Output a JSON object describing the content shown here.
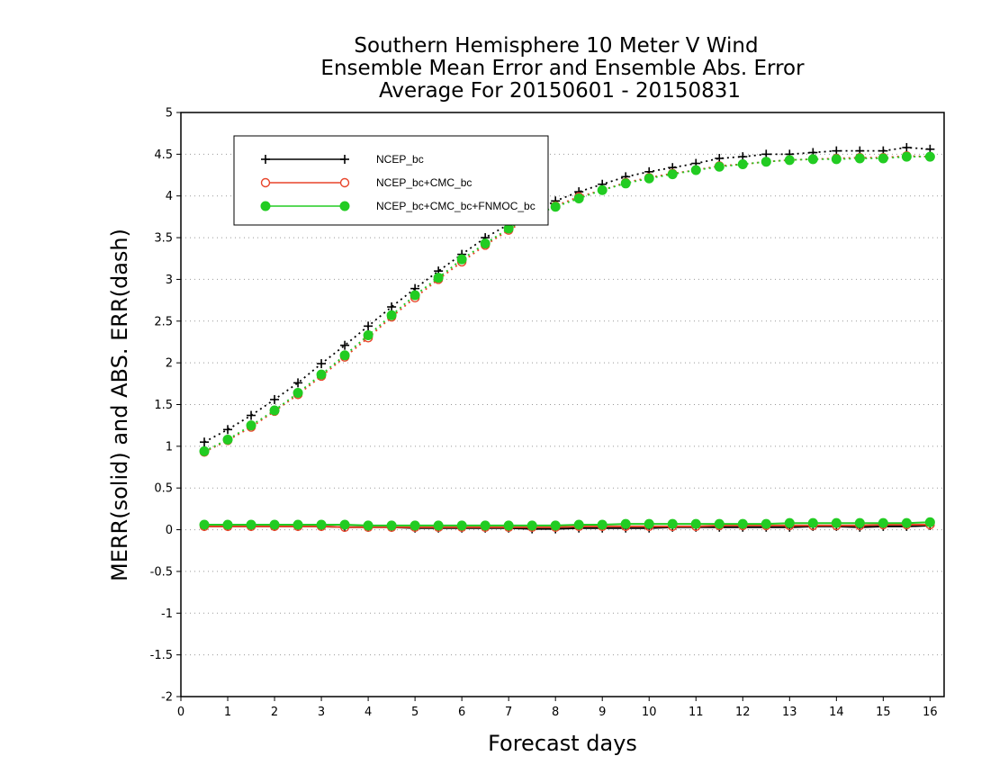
{
  "chart_data": {
    "type": "line",
    "title_lines": [
      "Southern Hemisphere 10 Meter V Wind",
      "Ensemble Mean Error and Ensemble Abs. Error",
      "Average For 20150601 - 20150831"
    ],
    "xlabel": "Forecast days",
    "ylabel": "MERR(solid) and ABS. ERR(dash)",
    "xlim": [
      0,
      16.3
    ],
    "ylim": [
      -2,
      5
    ],
    "x_ticks": [
      "0",
      "1",
      "2",
      "3",
      "4",
      "5",
      "6",
      "7",
      "8",
      "9",
      "10",
      "11",
      "12",
      "13",
      "14",
      "15",
      "16"
    ],
    "y_ticks": [
      "-2",
      "-1.5",
      "-1",
      "-0.5",
      "0",
      "0.5",
      "1",
      "1.5",
      "2",
      "2.5",
      "3",
      "3.5",
      "4",
      "4.5",
      "5"
    ],
    "grid": "horizontal dotted",
    "legend_position": "top-left",
    "x": [
      0.5,
      1.0,
      1.5,
      2.0,
      2.5,
      3.0,
      3.5,
      4.0,
      4.5,
      5.0,
      5.5,
      6.0,
      6.5,
      7.0,
      7.5,
      8.0,
      8.5,
      9.0,
      9.5,
      10.0,
      10.5,
      11.0,
      11.5,
      12.0,
      12.5,
      13.0,
      13.5,
      14.0,
      14.5,
      15.0,
      15.5,
      16.0
    ],
    "series": [
      {
        "name": "NCEP_bc",
        "color": "#000000",
        "marker": "plus",
        "merr": [
          0.04,
          0.04,
          0.04,
          0.04,
          0.04,
          0.04,
          0.03,
          0.03,
          0.03,
          0.02,
          0.02,
          0.02,
          0.02,
          0.02,
          0.01,
          0.01,
          0.02,
          0.02,
          0.02,
          0.02,
          0.03,
          0.03,
          0.03,
          0.03,
          0.03,
          0.03,
          0.04,
          0.04,
          0.03,
          0.04,
          0.04,
          0.05
        ],
        "abs_err": [
          1.05,
          1.2,
          1.37,
          1.56,
          1.76,
          1.99,
          2.21,
          2.44,
          2.67,
          2.89,
          3.1,
          3.3,
          3.5,
          3.66,
          3.8,
          3.94,
          4.05,
          4.14,
          4.23,
          4.29,
          4.34,
          4.39,
          4.45,
          4.47,
          4.5,
          4.5,
          4.52,
          4.54,
          4.54,
          4.54,
          4.58,
          4.56
        ]
      },
      {
        "name": "NCEP_bc+CMC_bc",
        "color": "#e8442a",
        "marker": "open-circle",
        "merr": [
          0.04,
          0.04,
          0.04,
          0.04,
          0.04,
          0.04,
          0.03,
          0.03,
          0.03,
          0.03,
          0.03,
          0.03,
          0.03,
          0.03,
          0.03,
          0.03,
          0.04,
          0.04,
          0.04,
          0.04,
          0.04,
          0.04,
          0.05,
          0.05,
          0.05,
          0.05,
          0.05,
          0.05,
          0.05,
          0.06,
          0.06,
          0.06
        ],
        "abs_err": [
          0.93,
          1.07,
          1.23,
          1.42,
          1.62,
          1.84,
          2.07,
          2.3,
          2.55,
          2.78,
          3.0,
          3.21,
          3.41,
          3.59,
          3.75,
          3.88,
          3.99,
          4.07,
          4.16,
          4.22,
          4.27,
          4.31,
          4.36,
          4.38,
          4.41,
          4.43,
          4.44,
          4.45,
          4.46,
          4.46,
          4.48,
          4.47
        ]
      },
      {
        "name": "NCEP_bc+CMC_bc+FNMOC_bc",
        "color": "#22cc22",
        "marker": "filled-circle",
        "merr": [
          0.06,
          0.06,
          0.06,
          0.06,
          0.06,
          0.06,
          0.06,
          0.05,
          0.05,
          0.05,
          0.05,
          0.05,
          0.05,
          0.05,
          0.05,
          0.05,
          0.06,
          0.06,
          0.07,
          0.07,
          0.07,
          0.07,
          0.07,
          0.07,
          0.07,
          0.08,
          0.08,
          0.08,
          0.08,
          0.08,
          0.08,
          0.09
        ],
        "abs_err": [
          0.94,
          1.08,
          1.25,
          1.43,
          1.64,
          1.86,
          2.09,
          2.33,
          2.57,
          2.81,
          3.02,
          3.24,
          3.43,
          3.61,
          3.76,
          3.87,
          3.97,
          4.07,
          4.15,
          4.21,
          4.26,
          4.31,
          4.35,
          4.38,
          4.41,
          4.43,
          4.44,
          4.44,
          4.45,
          4.45,
          4.47,
          4.47
        ]
      }
    ]
  }
}
